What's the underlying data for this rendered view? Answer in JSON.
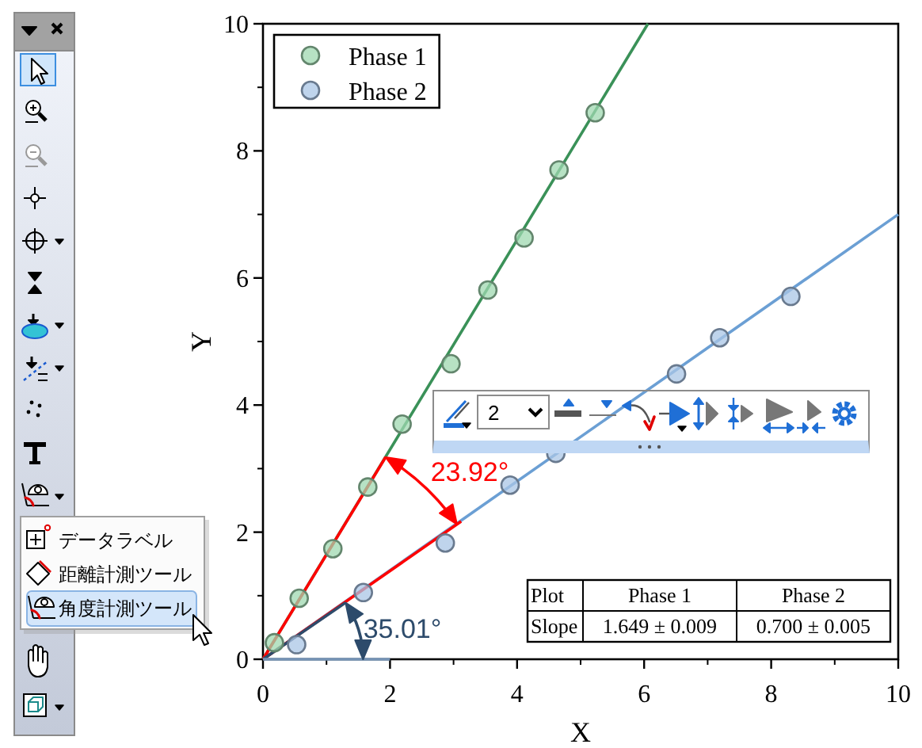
{
  "chart_data": {
    "type": "scatter",
    "xlabel": "X",
    "ylabel": "Y",
    "xlim": [
      0,
      10
    ],
    "ylim": [
      0,
      10
    ],
    "xticks": [
      0,
      2,
      4,
      6,
      8,
      10
    ],
    "yticks": [
      0,
      2,
      4,
      6,
      8,
      10
    ],
    "legend": "top left",
    "marker": "circle",
    "series": [
      {
        "name": "Phase 1",
        "color": "#9fd8b0",
        "x": [
          0.18,
          0.57,
          1.1,
          1.65,
          2.19,
          2.96,
          3.54,
          4.11,
          4.66,
          5.23
        ],
        "values": [
          0.26,
          0.96,
          1.74,
          2.71,
          3.7,
          4.65,
          5.81,
          6.63,
          7.7,
          8.6
        ]
      },
      {
        "name": "Phase 2",
        "color": "#a9c5e6",
        "x": [
          0.53,
          1.58,
          2.87,
          3.89,
          4.61,
          6.51,
          7.19,
          8.31
        ],
        "values": [
          0.23,
          1.05,
          1.83,
          2.74,
          3.24,
          4.49,
          5.06,
          5.71
        ]
      },
      {
        "type": "line",
        "marker": "none",
        "color": "#3a9158",
        "x": [
          0,
          6.06
        ],
        "values": [
          0,
          10
        ]
      },
      {
        "type": "line",
        "marker": "none",
        "color": "#6b9fd4",
        "x": [
          0,
          10
        ],
        "values": [
          0,
          7.0
        ]
      },
      {
        "type": "line",
        "marker": "none",
        "color": "#ff0000",
        "x": [
          0,
          1.93
        ],
        "values": [
          0,
          3.18
        ]
      },
      {
        "type": "line",
        "marker": "none",
        "color": "#ff0000",
        "x": [
          0,
          3.12
        ],
        "values": [
          0,
          2.17
        ]
      },
      {
        "type": "line",
        "marker": "none",
        "color": "#2d4b6b",
        "x": [
          0,
          1.3
        ],
        "values": [
          0,
          0.89
        ]
      },
      {
        "type": "line",
        "marker": "none",
        "color": "#7593b5",
        "x": [
          0,
          2.0
        ],
        "values": [
          0,
          0
        ]
      }
    ],
    "annotations": [
      "Plot",
      "Phase 1",
      "Phase 2",
      "Slope",
      "1.649 ± 0.009",
      "0.700 ± 0.005",
      "23.92°",
      "35.01°",
      "データラベル",
      "距離計測ツール",
      "角度計測ツール",
      "2"
    ]
  }
}
